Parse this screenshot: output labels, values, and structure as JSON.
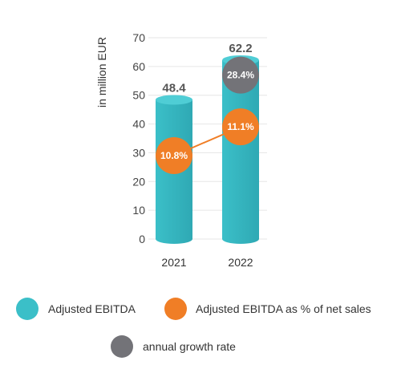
{
  "chart_data": {
    "type": "bar",
    "ylabel": "in million EUR",
    "ylim": [
      0,
      70
    ],
    "yticks": [
      0,
      10,
      20,
      30,
      40,
      50,
      60,
      70
    ],
    "categories": [
      "2021",
      "2022"
    ],
    "grid": true,
    "legend_position": "bottom",
    "series": [
      {
        "name": "Adjusted EBITDA",
        "type": "bar",
        "shape": "cylinder",
        "color": "#3bbfc8",
        "values": [
          48.4,
          62.2
        ],
        "labels": [
          "48.4",
          "62.2"
        ]
      },
      {
        "name": "Adjusted EBITDA as % of net sales",
        "type": "line",
        "color": "#f07e26",
        "values": [
          10.8,
          11.1
        ],
        "labels": [
          "10.8%",
          "11.1%"
        ],
        "plotted_at": [
          29,
          39
        ]
      },
      {
        "name": "annual growth rate",
        "type": "marker",
        "color": "#737378",
        "values": [
          null,
          28.4
        ],
        "labels": [
          null,
          "28.4%"
        ],
        "plotted_at": [
          null,
          57
        ]
      }
    ]
  }
}
